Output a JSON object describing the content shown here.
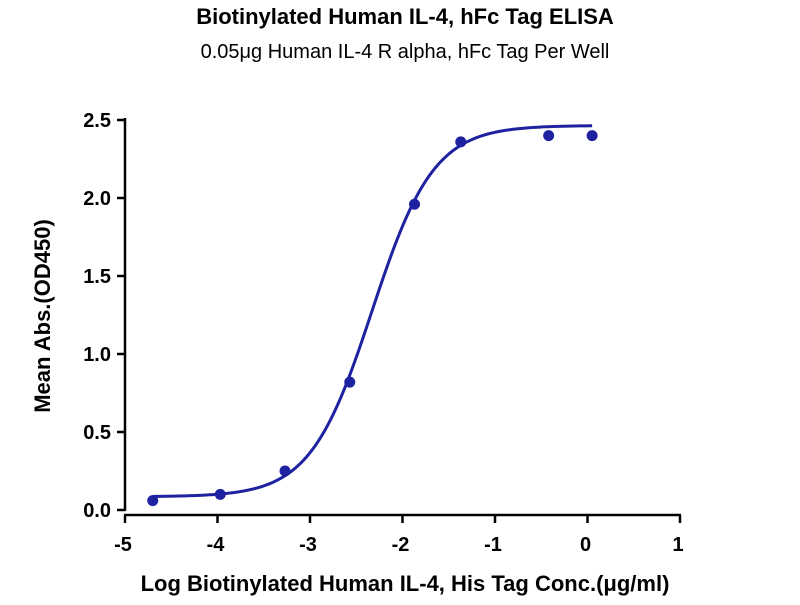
{
  "chart_data": {
    "type": "scatter",
    "title": "Biotinylated Human IL-4, hFc Tag ELISA",
    "subtitle": "0.05μg Human IL-4 R alpha, hFc Tag Per Well",
    "xlabel": "Log Biotinylated Human IL-4, His Tag Conc.(μg/ml)",
    "ylabel": "Mean Abs.(OD450)",
    "xlim": [
      -5,
      1
    ],
    "ylim": [
      0,
      2.5
    ],
    "xticks": [
      -5,
      -4,
      -3,
      -2,
      -1,
      0,
      1
    ],
    "xtick_labels": [
      "-5",
      "-4",
      "-3",
      "-2",
      "-1",
      "0",
      "1"
    ],
    "yticks": [
      0,
      0.5,
      1,
      1.5,
      2,
      2.5
    ],
    "ytick_labels": [
      "0.0",
      "0.5",
      "1.0",
      "1.5",
      "2.0",
      "2.5"
    ],
    "grid": false,
    "legend": "none",
    "series": [
      {
        "x": [
          -4.7,
          -3.97,
          -3.27,
          -2.57,
          -1.87,
          -1.37,
          -0.42,
          0.05
        ],
        "y": [
          0.06,
          0.1,
          0.25,
          0.82,
          1.96,
          2.36,
          2.4,
          2.4
        ],
        "color": "#1e22a0"
      }
    ],
    "fit": {
      "model": "4PL sigmoid",
      "bottom": 0.085,
      "top": 2.465,
      "log_ec50": -2.33,
      "hill_slope": 1.3,
      "x_range": [
        -4.7,
        0.05
      ],
      "color": "#1e22a0"
    }
  }
}
